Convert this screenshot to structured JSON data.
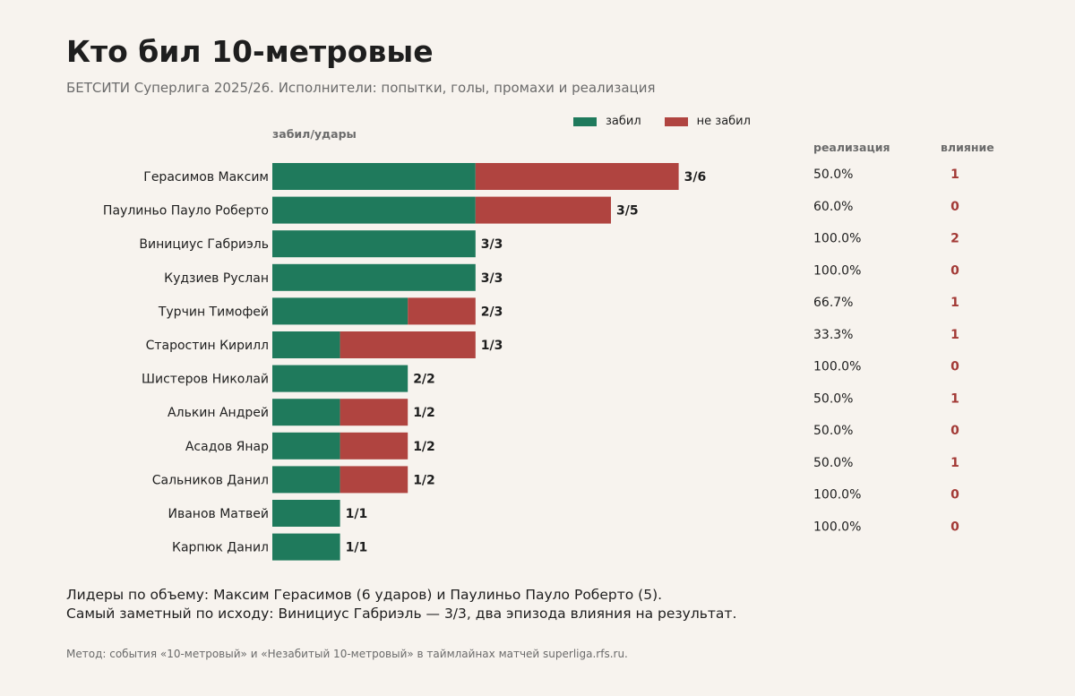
{
  "header": {
    "title": "Кто бил 10-метровые",
    "subtitle": "БЕТСИТИ Суперлига 2025/26. Исполнители: попытки, голы, промахи и реализация"
  },
  "columns": {
    "bars_label": "забил/удары",
    "rate_label": "реализация",
    "impact_label": "влияние"
  },
  "legend": {
    "scored": "забил",
    "missed": "не забил"
  },
  "colors": {
    "scored": "#1f7a5c",
    "missed": "#b04440",
    "impact": "#a33a36",
    "background": "#f7f3ee"
  },
  "chart_data": {
    "type": "bar",
    "orientation": "horizontal",
    "stacked": true,
    "categories": [
      "Герасимов Максим",
      "Паулиньо Пауло Роберто",
      "Винициус Габриэль",
      "Кудзиев Руслан",
      "Турчин Тимофей",
      "Старостин Кирилл",
      "Шистеров Николай",
      "Алькин Андрей",
      "Асадов Янар",
      "Сальников Данил",
      "Иванов Матвей",
      "Карпюк Данил"
    ],
    "series": [
      {
        "name": "забил",
        "values": [
          3,
          3,
          3,
          3,
          2,
          1,
          2,
          1,
          1,
          1,
          1,
          1
        ]
      },
      {
        "name": "не забил",
        "values": [
          3,
          2,
          0,
          0,
          1,
          2,
          0,
          1,
          1,
          1,
          0,
          0
        ]
      }
    ],
    "bar_labels": [
      "3/6",
      "3/5",
      "3/3",
      "3/3",
      "2/3",
      "1/3",
      "2/2",
      "1/2",
      "1/2",
      "1/2",
      "1/1",
      "1/1"
    ],
    "realization": [
      "50.0%",
      "60.0%",
      "100.0%",
      "100.0%",
      "66.7%",
      "33.3%",
      "100.0%",
      "50.0%",
      "50.0%",
      "50.0%",
      "100.0%",
      "100.0%"
    ],
    "impact": [
      1,
      0,
      2,
      0,
      1,
      1,
      0,
      1,
      0,
      1,
      0,
      0
    ],
    "xlim": [
      0,
      6
    ],
    "grid": false,
    "legend_position": "top-right"
  },
  "notes": {
    "line1": "Лидеры по объему: Максим Герасимов (6 ударов) и Паулиньо Пауло Роберто (5).",
    "line2": "Самый заметный по исходу: Винициус Габриэль — 3/3, два эпизода влияния на результат.",
    "method": "Метод: события «10-метровый» и «Незабитый 10-метровый» в таймлайнах матчей superliga.rfs.ru."
  }
}
